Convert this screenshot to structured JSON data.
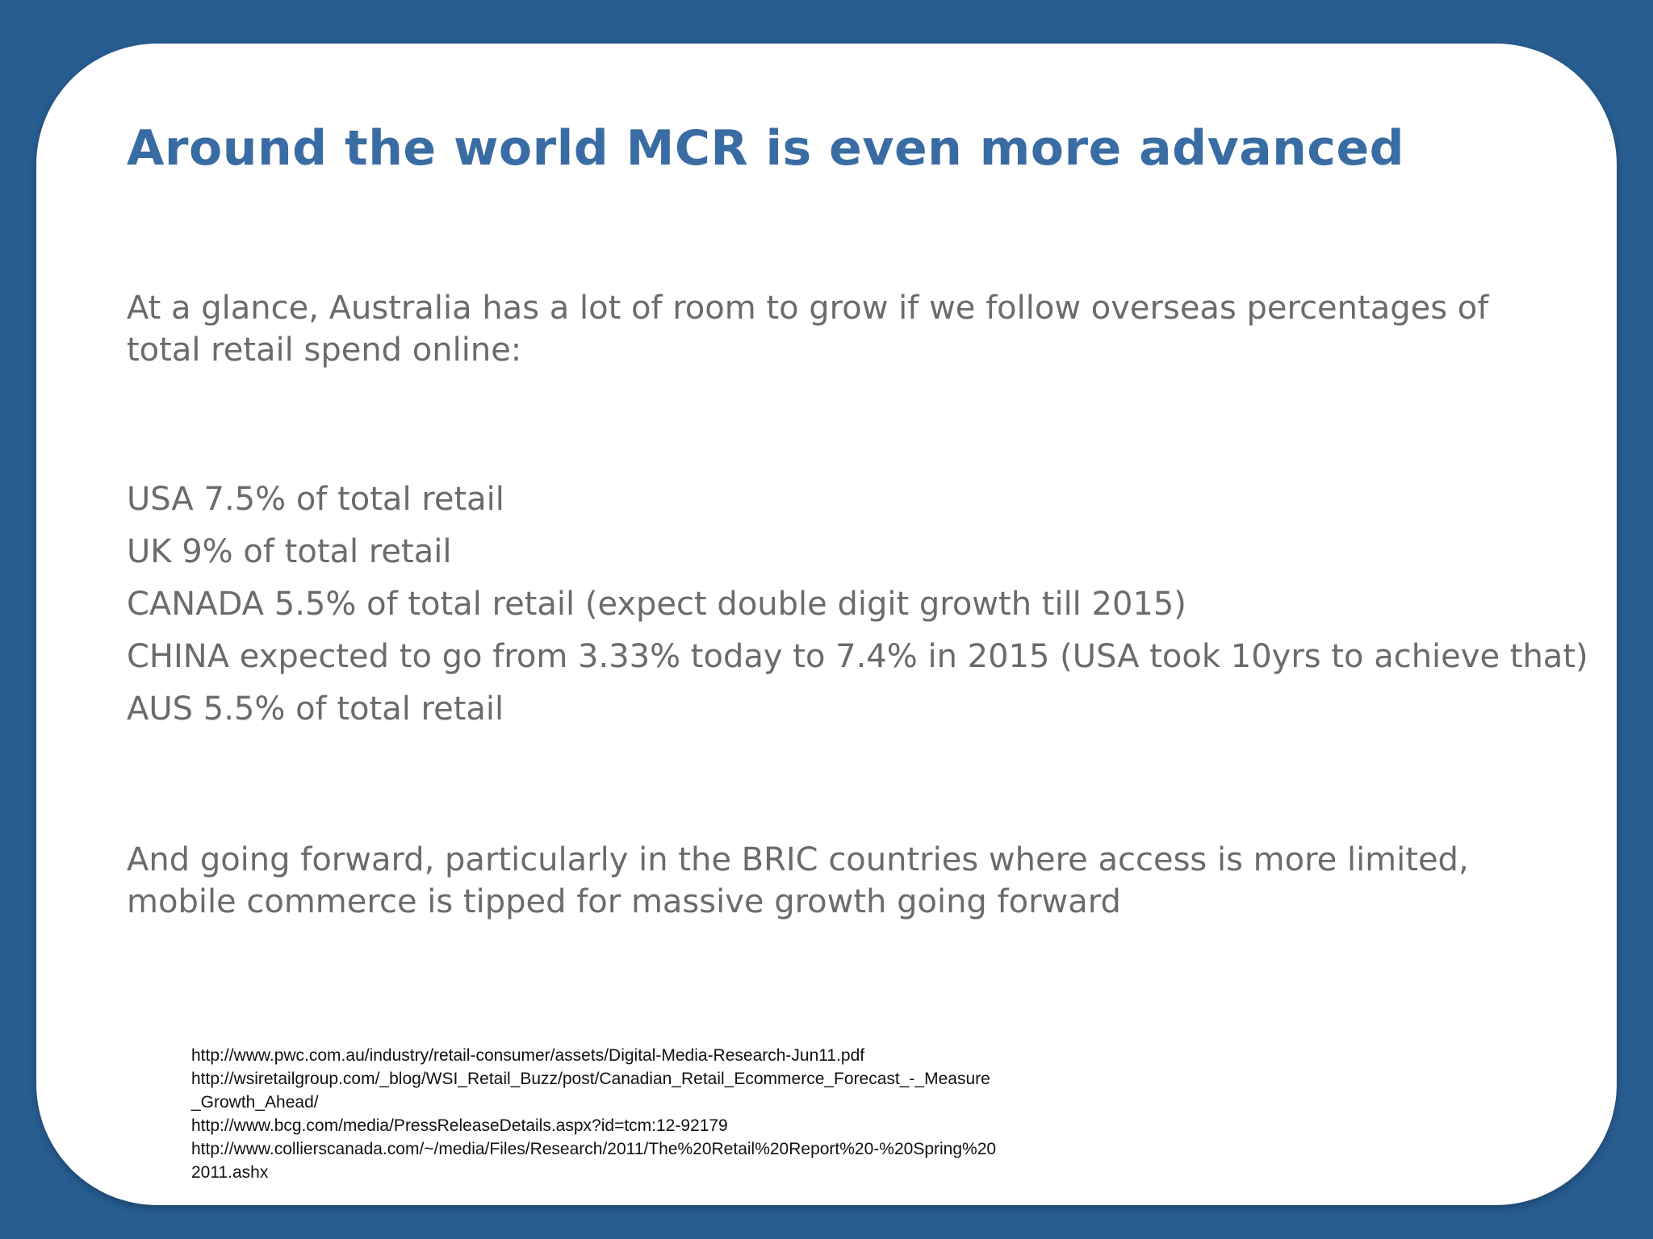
{
  "slide": {
    "title": "Around the world MCR is even more advanced",
    "intro": "At a glance, Australia has a lot of room to grow if we follow overseas percentages of total retail spend online:",
    "stats": [
      "USA 7.5% of total retail",
      "UK 9% of total retail",
      "CANADA 5.5% of total retail (expect double digit growth till 2015)",
      "CHINA expected to go from 3.33% today to 7.4% in 2015 (USA took 10yrs to achieve that)",
      "AUS 5.5% of total retail"
    ],
    "outro": "And going forward, particularly in the BRIC countries where access is more limited, mobile commerce is tipped for massive growth going forward",
    "references": [
      "http://www.pwc.com.au/industry/retail-consumer/assets/Digital-Media-Research-Jun11.pdf",
      "http://wsiretailgroup.com/_blog/WSI_Retail_Buzz/post/Canadian_Retail_Ecommerce_Forecast_-_Measure_Growth_Ahead/",
      "http://www.bcg.com/media/PressReleaseDetails.aspx?id=tcm:12-92179",
      "http://www.collierscanada.com/~/media/Files/Research/2011/The%20Retail%20Report%20-%20Spring%202011.ashx"
    ]
  },
  "colors": {
    "background": "#275d91",
    "title": "#3a6ca4",
    "body_text": "#6b6b6b"
  }
}
